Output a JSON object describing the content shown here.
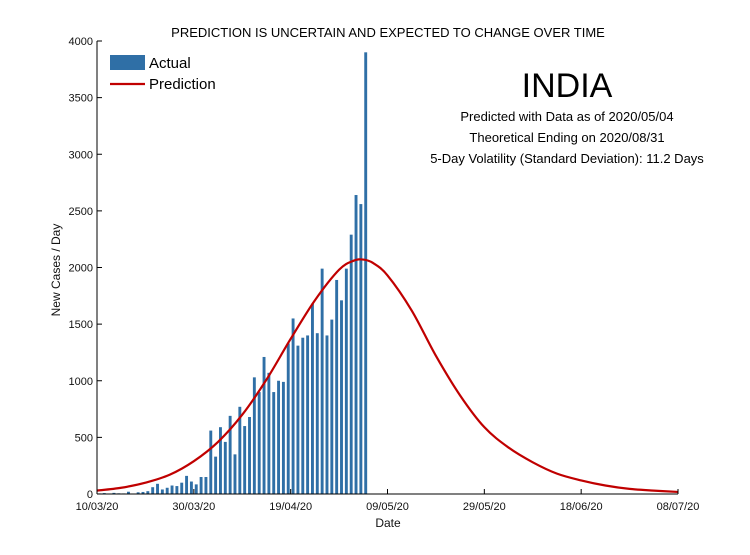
{
  "chart_data": {
    "type": "bar+line",
    "title": "PREDICTION IS UNCERTAIN AND EXPECTED TO CHANGE OVER TIME",
    "xlabel": "Date",
    "ylabel": "New Cases / Day",
    "ylim": [
      0,
      4000
    ],
    "xlim_days": [
      0,
      120
    ],
    "x_ticks": [
      {
        "day": 0,
        "label": "10/03/20"
      },
      {
        "day": 20,
        "label": "30/03/20"
      },
      {
        "day": 40,
        "label": "19/04/20"
      },
      {
        "day": 60,
        "label": "09/05/20"
      },
      {
        "day": 80,
        "label": "29/05/20"
      },
      {
        "day": 100,
        "label": "18/06/20"
      },
      {
        "day": 120,
        "label": "08/07/20"
      }
    ],
    "y_ticks": [
      {
        "value": 0,
        "label": "0"
      },
      {
        "value": 500,
        "label": "500"
      },
      {
        "value": 1000,
        "label": "1000"
      },
      {
        "value": 1500,
        "label": "1500"
      },
      {
        "value": 2000,
        "label": "2000"
      },
      {
        "value": 2500,
        "label": "2500"
      },
      {
        "value": 3000,
        "label": "3000"
      },
      {
        "value": 3500,
        "label": "3500"
      },
      {
        "value": 4000,
        "label": "4000"
      }
    ],
    "legend": {
      "position": "top-left",
      "actual": "Actual",
      "prediction": "Prediction"
    },
    "series": [
      {
        "name": "Actual",
        "type": "bar",
        "color": "#2f6fa6",
        "start_day": 0,
        "values": [
          5,
          8,
          3,
          10,
          6,
          5,
          20,
          3,
          15,
          18,
          25,
          60,
          90,
          40,
          55,
          75,
          70,
          100,
          160,
          110,
          85,
          150,
          150,
          560,
          330,
          590,
          460,
          690,
          350,
          770,
          600,
          680,
          1030,
          900,
          1210,
          1070,
          900,
          1000,
          990,
          1330,
          1550,
          1310,
          1380,
          1400,
          1680,
          1420,
          1990,
          1400,
          1540,
          1890,
          1710,
          1990,
          2290,
          2640,
          2560,
          3900
        ]
      },
      {
        "name": "Prediction",
        "type": "line",
        "color": "#c00000",
        "x": [
          0,
          5,
          10,
          15,
          20,
          25,
          30,
          35,
          40,
          45,
          50,
          53,
          55,
          57,
          60,
          65,
          70,
          75,
          80,
          85,
          90,
          95,
          100,
          105,
          110,
          115,
          120
        ],
        "values": [
          30,
          55,
          100,
          170,
          290,
          460,
          700,
          1010,
          1370,
          1710,
          1980,
          2060,
          2070,
          2040,
          1930,
          1620,
          1220,
          870,
          590,
          410,
          280,
          180,
          120,
          75,
          45,
          30,
          18
        ]
      }
    ]
  },
  "annotations": {
    "country": "INDIA",
    "line1": "Predicted with Data as of 2020/05/04",
    "line2": "Theoretical Ending on 2020/08/31",
    "line3": "5-Day Volatility (Standard Deviation): 11.2 Days"
  }
}
